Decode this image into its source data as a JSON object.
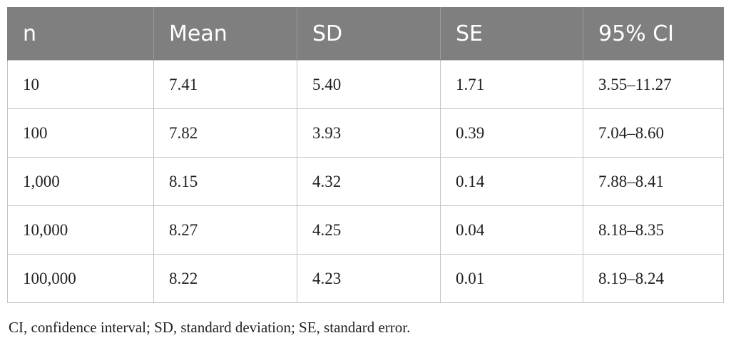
{
  "table": {
    "headers": [
      "n",
      "Mean",
      "SD",
      "SE",
      "95% CI"
    ],
    "rows": [
      [
        "10",
        "7.41",
        "5.40",
        "1.71",
        "3.55–11.27"
      ],
      [
        "100",
        "7.82",
        "3.93",
        "0.39",
        "7.04–8.60"
      ],
      [
        "1,000",
        "8.15",
        "4.32",
        "0.14",
        "7.88–8.41"
      ],
      [
        "10,000",
        "8.27",
        "4.25",
        "0.04",
        "8.18–8.35"
      ],
      [
        "100,000",
        "8.22",
        "4.23",
        "0.01",
        "8.19–8.24"
      ]
    ],
    "header_color": "#7f7f7f",
    "header_text_color": "#ffffff"
  },
  "footnote": "CI, confidence interval; SD, standard deviation; SE, standard error."
}
